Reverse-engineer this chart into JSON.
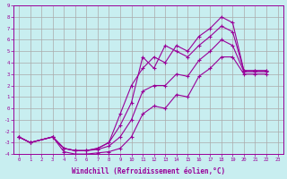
{
  "xlabel": "Windchill (Refroidissement éolien,°C)",
  "bg_color": "#c8eef0",
  "line_color": "#990099",
  "grid_color": "#aaaaaa",
  "xmin": 0,
  "xmax": 23,
  "ymin": -4,
  "ymax": 9,
  "line1_x": [
    0,
    1,
    3,
    4,
    5,
    6,
    7,
    8,
    9,
    10,
    11,
    12,
    13,
    14,
    15,
    16,
    17,
    18,
    19,
    20,
    21,
    22
  ],
  "line1_y": [
    -2.5,
    -3.0,
    -2.5,
    -3.8,
    -4.0,
    -4.0,
    -3.9,
    -3.8,
    -3.5,
    -2.5,
    -0.5,
    0.2,
    0.0,
    1.2,
    1.0,
    2.8,
    3.5,
    4.5,
    4.5,
    3.0,
    3.0,
    3.0
  ],
  "line2_x": [
    0,
    1,
    3,
    4,
    5,
    6,
    7,
    8,
    9,
    10,
    11,
    12,
    13,
    14,
    15,
    16,
    17,
    18,
    19,
    20,
    21,
    22
  ],
  "line2_y": [
    -2.5,
    -3.0,
    -2.5,
    -3.5,
    -3.7,
    -3.7,
    -3.6,
    -3.3,
    -2.5,
    -1.0,
    1.5,
    2.0,
    2.0,
    3.0,
    2.8,
    4.2,
    5.0,
    6.0,
    5.5,
    3.2,
    3.2,
    3.2
  ],
  "line3_x": [
    0,
    1,
    3,
    4,
    5,
    6,
    7,
    8,
    9,
    10,
    11,
    12,
    13,
    14,
    15,
    16,
    17,
    18,
    19,
    20,
    21,
    22
  ],
  "line3_y": [
    -2.5,
    -3.0,
    -2.5,
    -3.5,
    -3.7,
    -3.7,
    -3.5,
    -3.0,
    -1.5,
    0.5,
    4.5,
    3.5,
    5.5,
    5.0,
    4.5,
    5.5,
    6.3,
    7.2,
    6.7,
    3.3,
    3.3,
    3.3
  ],
  "line4_x": [
    0,
    1,
    3,
    4,
    5,
    6,
    7,
    8,
    9,
    10,
    11,
    12,
    13,
    14,
    15,
    16,
    17,
    18,
    19,
    20,
    21,
    22
  ],
  "line4_y": [
    -2.5,
    -3.0,
    -2.5,
    -3.5,
    -3.7,
    -3.7,
    -3.5,
    -3.0,
    -0.5,
    2.0,
    3.5,
    4.5,
    4.0,
    5.5,
    5.0,
    6.3,
    7.0,
    8.0,
    7.5,
    3.3,
    3.3,
    3.3
  ]
}
